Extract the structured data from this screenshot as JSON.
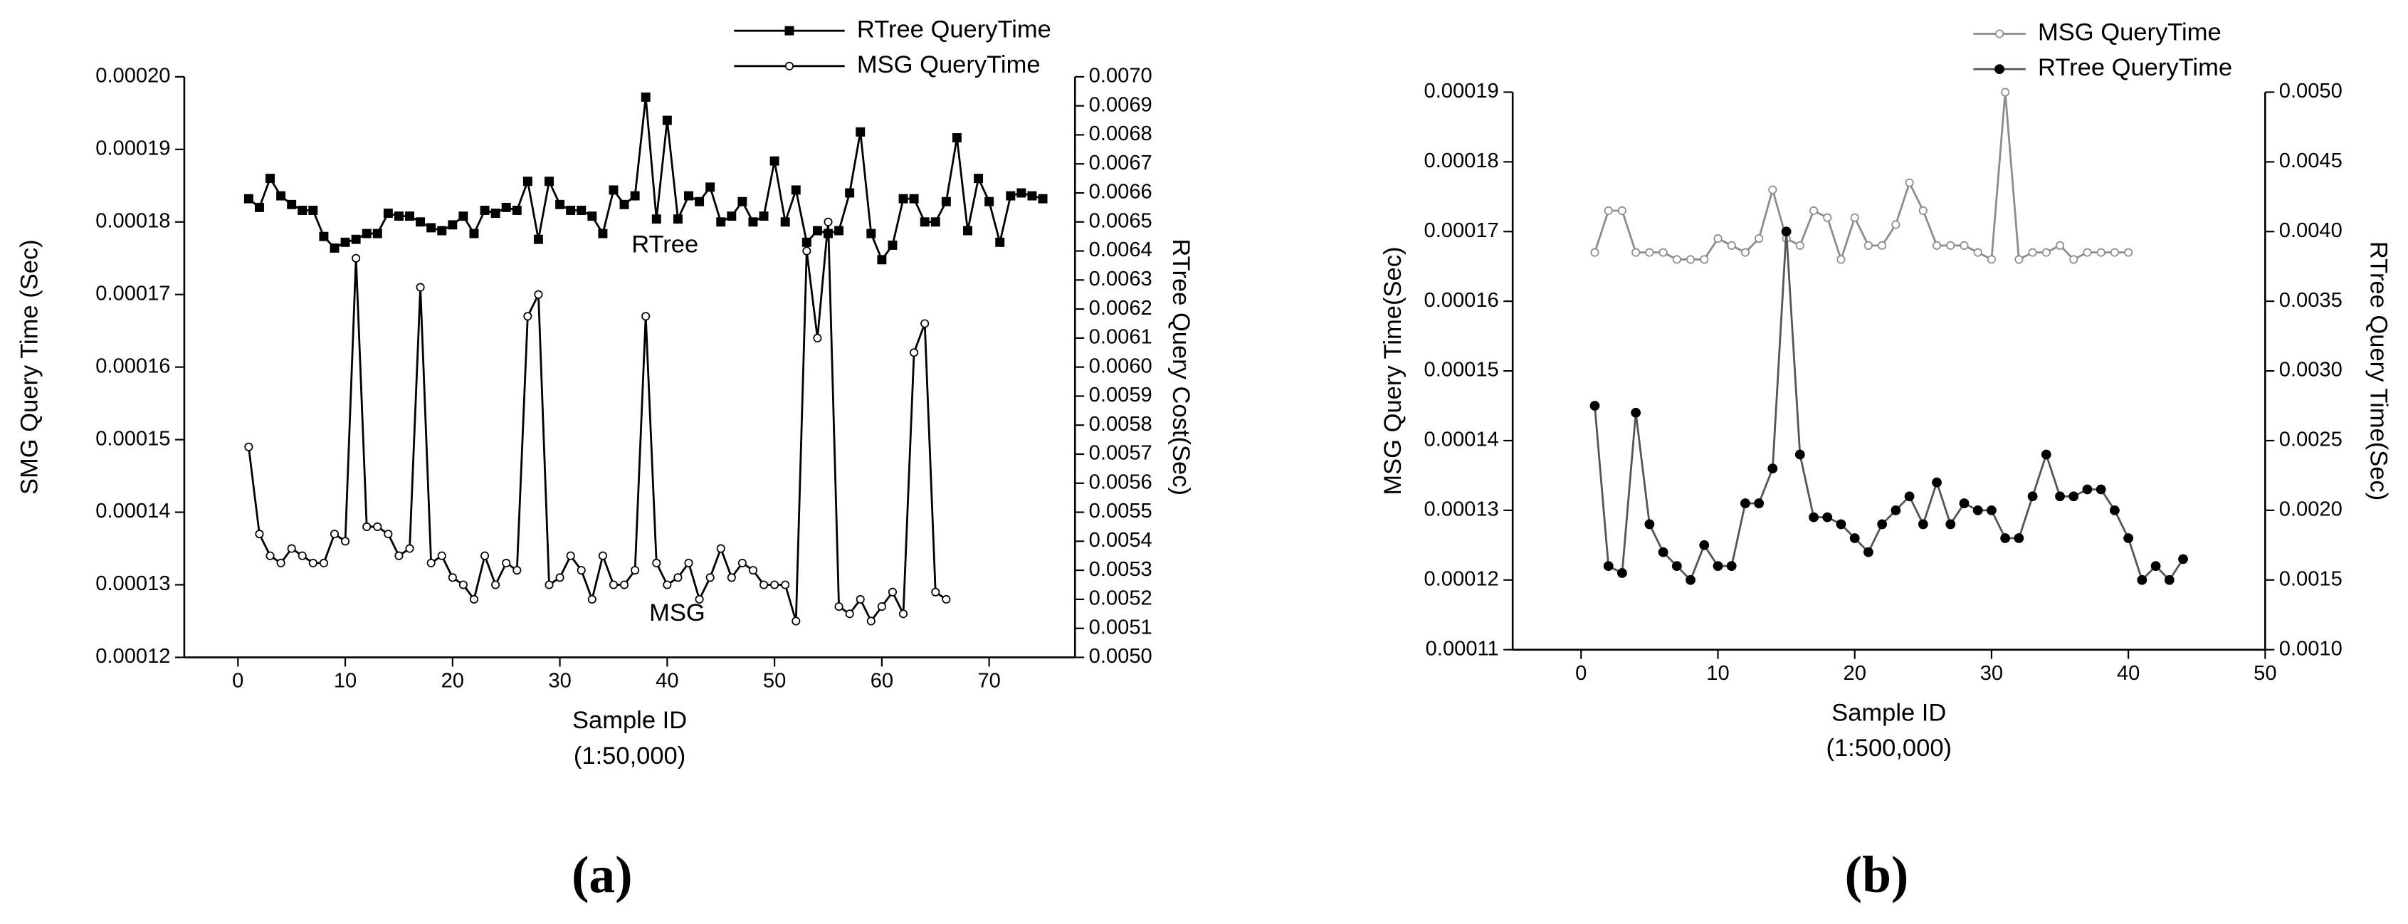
{
  "chart_data": [
    {
      "type": "line",
      "panel_label": "(a)",
      "xlabel": "Sample ID",
      "xlabel_note": "(1:50,000)",
      "ylabel": "SMG Query Time (Sec)",
      "y2label": "RTree Query Cost(Sec)",
      "annotations": [
        {
          "text": "RTree"
        },
        {
          "text": "MSG"
        }
      ],
      "xlim": [
        -5,
        78
      ],
      "xticks": [
        0,
        10,
        20,
        30,
        40,
        50,
        60,
        70
      ],
      "ylim": [
        0.00012,
        0.0002
      ],
      "yticks": [
        0.00012,
        0.00013,
        0.00014,
        0.00015,
        0.00016,
        0.00017,
        0.00018,
        0.00019,
        {
          "value": 0.0002,
          "label": "0.00020"
        }
      ],
      "y2lim": [
        0.005,
        0.007
      ],
      "y2ticks": [
        {
          "value": 0.005,
          "label": "0.0050"
        },
        0.0051,
        0.0052,
        0.0053,
        0.0054,
        0.0055,
        0.0056,
        0.0057,
        0.0058,
        0.0059,
        {
          "value": 0.006,
          "label": "0.0060"
        },
        0.0061,
        0.0062,
        0.0063,
        0.0064,
        0.0065,
        0.0066,
        0.0067,
        0.0068,
        0.0069,
        {
          "value": 0.007,
          "label": "0.0070"
        }
      ],
      "series": [
        {
          "name": "RTree QueryTime",
          "color": "#000000",
          "marker": "square",
          "filled": true,
          "axis": "y2",
          "x": [
            1,
            2,
            3,
            4,
            5,
            6,
            7,
            8,
            9,
            10,
            11,
            12,
            13,
            14,
            15,
            16,
            17,
            18,
            19,
            20,
            21,
            22,
            23,
            24,
            25,
            26,
            27,
            28,
            29,
            30,
            31,
            32,
            33,
            34,
            35,
            36,
            37,
            38,
            39,
            40,
            41,
            42,
            43,
            44,
            45,
            46,
            47,
            48,
            49,
            50,
            51,
            52,
            53,
            54,
            55,
            56,
            57,
            58,
            59,
            60,
            61,
            62,
            63,
            64,
            65,
            66,
            67,
            68,
            69,
            70,
            71,
            72,
            73,
            74,
            75
          ],
          "values": [
            0.00658,
            0.00655,
            0.00665,
            0.00659,
            0.00656,
            0.00654,
            0.00654,
            0.00645,
            0.00641,
            0.00643,
            0.00644,
            0.00646,
            0.00646,
            0.00653,
            0.00652,
            0.00652,
            0.0065,
            0.00648,
            0.00647,
            0.00649,
            0.00652,
            0.00646,
            0.00654,
            0.00653,
            0.00655,
            0.00654,
            0.00664,
            0.00644,
            0.00664,
            0.00656,
            0.00654,
            0.00654,
            0.00652,
            0.00646,
            0.00661,
            0.00656,
            0.00659,
            0.00693,
            0.00651,
            0.00685,
            0.00651,
            0.00659,
            0.00657,
            0.00662,
            0.0065,
            0.00652,
            0.00657,
            0.0065,
            0.00652,
            0.00671,
            0.0065,
            0.00661,
            0.00643,
            0.00647,
            0.00646,
            0.00647,
            0.0066,
            0.00681,
            0.00646,
            0.00637,
            0.00642,
            0.00658,
            0.00658,
            0.0065,
            0.0065,
            0.00657,
            0.00679,
            0.00647,
            0.00665,
            0.00657,
            0.00643,
            0.00659,
            0.0066,
            0.00659,
            0.00658
          ]
        },
        {
          "name": "MSG QueryTime",
          "color": "#000000",
          "marker": "circle",
          "filled": false,
          "axis": "y",
          "x": [
            1,
            2,
            3,
            4,
            5,
            6,
            7,
            8,
            9,
            10,
            11,
            12,
            13,
            14,
            15,
            16,
            17,
            18,
            19,
            20,
            21,
            22,
            23,
            24,
            25,
            26,
            27,
            28,
            29,
            30,
            31,
            32,
            33,
            34,
            35,
            36,
            37,
            38,
            39,
            40,
            41,
            42,
            43,
            44,
            45,
            46,
            47,
            48,
            49,
            50,
            51,
            52,
            53,
            54,
            55,
            56,
            57,
            58,
            59,
            60,
            61,
            62,
            63,
            64,
            65,
            66
          ],
          "values": [
            0.000149,
            0.000137,
            0.000134,
            0.000133,
            0.000135,
            0.000134,
            0.000133,
            0.000133,
            0.000137,
            0.000136,
            0.000175,
            0.000138,
            0.000138,
            0.000137,
            0.000134,
            0.000135,
            0.000171,
            0.000133,
            0.000134,
            0.000131,
            0.00013,
            0.000128,
            0.000134,
            0.00013,
            0.000133,
            0.000132,
            0.000167,
            0.00017,
            0.00013,
            0.000131,
            0.000134,
            0.000132,
            0.000128,
            0.000134,
            0.00013,
            0.00013,
            0.000132,
            0.000167,
            0.000133,
            0.00013,
            0.000131,
            0.000133,
            0.000128,
            0.000131,
            0.000135,
            0.000131,
            0.000133,
            0.000132,
            0.00013,
            0.00013,
            0.00013,
            0.000125,
            0.000176,
            0.000164,
            0.00018,
            0.000127,
            0.000126,
            0.000128,
            0.000125,
            0.000127,
            0.000129,
            0.000126,
            0.000162,
            0.000166,
            0.000129,
            0.000128
          ]
        }
      ]
    },
    {
      "type": "line",
      "panel_label": "(b)",
      "xlabel": "Sample ID",
      "xlabel_note": "(1:500,000)",
      "ylabel": "MSG Query Time(Sec)",
      "y2label": "RTree Query Time(Sec)",
      "xlim": [
        -5,
        50
      ],
      "xticks": [
        0,
        10,
        20,
        30,
        40,
        50
      ],
      "ylim": [
        0.00011,
        0.00019
      ],
      "yticks": [
        0.00011,
        0.00012,
        0.00013,
        0.00014,
        0.00015,
        0.00016,
        0.00017,
        0.00018,
        0.00019
      ],
      "y2lim": [
        0.001,
        0.005
      ],
      "y2ticks": [
        {
          "value": 0.001,
          "label": "0.0010"
        },
        0.0015,
        {
          "value": 0.002,
          "label": "0.0020"
        },
        0.0025,
        {
          "value": 0.003,
          "label": "0.0030"
        },
        0.0035,
        {
          "value": 0.004,
          "label": "0.0040"
        },
        0.0045,
        {
          "value": 0.005,
          "label": "0.0050"
        }
      ],
      "series": [
        {
          "name": "MSG QueryTime",
          "color": "#8c8c8c",
          "marker": "circle",
          "filled": false,
          "axis": "y",
          "x": [
            1,
            2,
            3,
            4,
            5,
            6,
            7,
            8,
            9,
            10,
            11,
            12,
            13,
            14,
            15,
            16,
            17,
            18,
            19,
            20,
            21,
            22,
            23,
            24,
            25,
            26,
            27,
            28,
            29,
            30,
            31,
            32,
            33,
            34,
            35,
            36,
            37,
            38,
            39,
            40
          ],
          "values": [
            0.000167,
            0.000173,
            0.000173,
            0.000167,
            0.000167,
            0.000167,
            0.000166,
            0.000166,
            0.000166,
            0.000169,
            0.000168,
            0.000167,
            0.000169,
            0.000176,
            0.000169,
            0.000168,
            0.000173,
            0.000172,
            0.000166,
            0.000172,
            0.000168,
            0.000168,
            0.000171,
            0.000177,
            0.000173,
            0.000168,
            0.000168,
            0.000168,
            0.000167,
            0.000166,
            0.00019,
            0.000166,
            0.000167,
            0.000167,
            0.000168,
            0.000166,
            0.000167,
            0.000167,
            0.000167,
            0.000167
          ]
        },
        {
          "name": "RTree QueryTime",
          "color": "#555555",
          "marker": "circle",
          "filled": true,
          "axis": "y2",
          "x": [
            1,
            2,
            3,
            4,
            5,
            6,
            7,
            8,
            9,
            10,
            11,
            12,
            13,
            14,
            15,
            16,
            17,
            18,
            19,
            20,
            21,
            22,
            23,
            24,
            25,
            26,
            27,
            28,
            29,
            30,
            31,
            32,
            33,
            34,
            35,
            36,
            37,
            38,
            39,
            40,
            41,
            42,
            43,
            44
          ],
          "values": [
            0.00275,
            0.0016,
            0.00155,
            0.0027,
            0.0019,
            0.0017,
            0.0016,
            0.0015,
            0.00175,
            0.0016,
            0.0016,
            0.00205,
            0.00205,
            0.0023,
            0.004,
            0.0024,
            0.00195,
            0.00195,
            0.0019,
            0.0018,
            0.0017,
            0.0019,
            0.002,
            0.0021,
            0.0019,
            0.0022,
            0.0019,
            0.00205,
            0.002,
            0.002,
            0.0018,
            0.0018,
            0.0021,
            0.0024,
            0.0021,
            0.0021,
            0.00215,
            0.00215,
            0.002,
            0.0018,
            0.0015,
            0.0016,
            0.0015,
            0.00165
          ]
        }
      ]
    }
  ]
}
